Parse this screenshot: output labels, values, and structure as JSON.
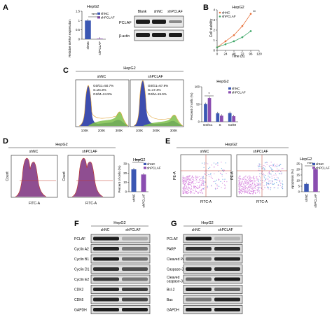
{
  "colors": {
    "shNC": "#3b57b3",
    "shPCLAF": "#8a4db0",
    "line_shNC": "#e8713a",
    "line_shPCLAF": "#3aa565",
    "hist_blue": "#2d3ea8",
    "hist_green": "#7ec04b",
    "hist_purple": "#7b2f7e",
    "dot_pink": "#d98be0",
    "dot_blue": "#6aa8e0"
  },
  "icons": [
    "significance-asterisk"
  ],
  "panels": {
    "A": {
      "letter": "A",
      "chart_title": "HepG2",
      "ylabel": "Relative mRNA expression",
      "legend": [
        "shNC",
        "shPCLAF"
      ],
      "sig": "****",
      "blot_header": [
        "Blank",
        "shNC",
        "shPCLAF"
      ],
      "blot_rows": [
        "PCLAF",
        "β-actin"
      ]
    },
    "B": {
      "letter": "B",
      "title": "HepG2",
      "ylabel": "Cell viability",
      "xlabel": "Time (h)",
      "legend": [
        "shNC",
        "shPCLAF"
      ],
      "sig": "**"
    },
    "C": {
      "letter": "C",
      "title": "HepG2",
      "plots": [
        {
          "name": "shNC",
          "g0g1": "G0/G1=50.7%",
          "s": "S=24.3%",
          "g2m": "G2/M=24.9%"
        },
        {
          "name": "shPCLAF",
          "g0g1": "G0/G1=67.9%",
          "s": "S=17.4%",
          "g2m": "G2/M=15.9%"
        }
      ],
      "xticks": [
        "100K",
        "200K",
        "300K"
      ],
      "chart_title": "HepG2",
      "ylabel": "Percent of cells (%)",
      "legend": [
        "shNC",
        "shPCLAF"
      ],
      "sig": "*"
    },
    "D": {
      "letter": "D",
      "title": "HepG2",
      "plots": [
        "shNC",
        "shPCLAF"
      ],
      "xlabel": "FITC-A",
      "ylabel": "Count",
      "chart_title": "HepG2",
      "ylabel_bar": "Percent of cells (%)",
      "legend": [
        "shNC",
        "shPCLAF"
      ],
      "sig": "****"
    },
    "E": {
      "letter": "E",
      "title": "HepG2",
      "plots": [
        "shNC",
        "shPCLAF"
      ],
      "xlabel": "FITC-A",
      "ylabel": "PE-A",
      "chart_title": "HepG2",
      "ylabel_bar": "Apoptosis (%)",
      "legend": [
        "shNC",
        "shPCLAF"
      ],
      "sig": "****"
    },
    "F": {
      "letter": "F",
      "title": "HepG2",
      "cols": [
        "shNC",
        "shPCLAF"
      ],
      "rows": [
        "PCLAF",
        "Cyclin A2",
        "Cyclin B1",
        "Cyclin D1",
        "Cyclin E2",
        "CDK2",
        "CDK6",
        "GAPDH"
      ]
    },
    "G": {
      "letter": "G",
      "title": "HepG2",
      "cols": [
        "shNC",
        "shPCLAF"
      ],
      "rows": [
        "PCLAF",
        "PARP",
        "Cleaved PARP",
        "Caspase-3",
        "Cleaved caspase-3",
        "Bcl-2",
        "Bax",
        "GAPDH"
      ]
    }
  },
  "chart_data": [
    {
      "type": "bar",
      "title": "HepG2",
      "ylabel": "Relative mRNA expression",
      "categories": [
        "shNC",
        "shPCLAF"
      ],
      "values": [
        1.0,
        0.03
      ],
      "ylim": [
        0,
        1.5
      ],
      "yticks": [
        0,
        0.5,
        1.0,
        1.5
      ],
      "legend_position": "top-right"
    },
    {
      "type": "line",
      "title": "HepG2",
      "xlabel": "Time (h)",
      "ylabel": "Cell viability",
      "x": [
        0,
        24,
        48,
        72,
        96
      ],
      "xticks": [
        0,
        24,
        48,
        72,
        96,
        120
      ],
      "yticks": [
        0,
        1,
        2,
        3,
        4
      ],
      "xlim": [
        0,
        120
      ],
      "ylim": [
        0,
        4
      ],
      "series": [
        {
          "name": "shNC",
          "values": [
            0.3,
            0.9,
            1.5,
            2.4,
            3.6
          ]
        },
        {
          "name": "shPCLAF",
          "values": [
            0.3,
            0.6,
            0.9,
            1.3,
            1.9
          ]
        }
      ],
      "legend_position": "top-left"
    },
    {
      "type": "bar",
      "title": "HepG2",
      "ylabel": "Percent of cells (%)",
      "categories": [
        "G0/G1",
        "S",
        "G2/M"
      ],
      "series": [
        {
          "name": "shNC",
          "values": [
            50.7,
            24.3,
            24.9
          ]
        },
        {
          "name": "shPCLAF",
          "values": [
            67.9,
            17.4,
            15.9
          ]
        }
      ],
      "ylim": [
        0,
        100
      ],
      "yticks": [
        0,
        50,
        100
      ],
      "legend_position": "top-right"
    },
    {
      "type": "bar",
      "title": "HepG2",
      "ylabel": "Percent of cells (%)",
      "categories": [
        "shNC",
        "shPCLAF"
      ],
      "values": [
        24.0,
        18.5
      ],
      "ylim": [
        0,
        30
      ],
      "yticks": [
        0,
        10,
        20,
        30
      ],
      "legend_position": "top-right"
    },
    {
      "type": "bar",
      "title": "HepG2",
      "ylabel": "Apoptosis (%)",
      "categories": [
        "shNC",
        "shPCLAF"
      ],
      "values": [
        7.0,
        20.0
      ],
      "ylim": [
        0,
        25
      ],
      "yticks": [
        0,
        5,
        10,
        15,
        20,
        25
      ],
      "legend_position": "top-right"
    }
  ]
}
